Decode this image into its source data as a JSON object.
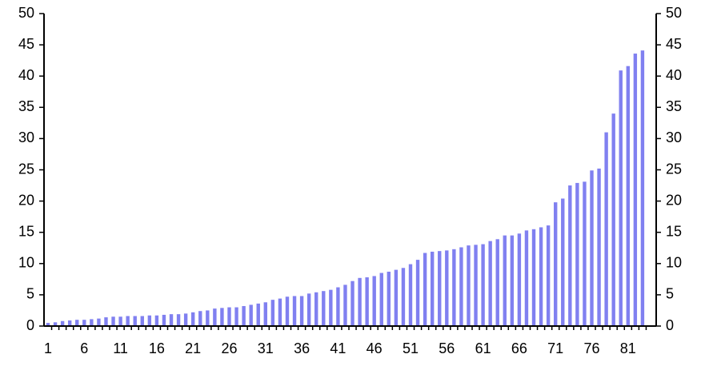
{
  "chart_data": {
    "type": "bar",
    "categories": [
      "1",
      null,
      null,
      null,
      null,
      "6",
      null,
      null,
      null,
      null,
      "11",
      null,
      null,
      null,
      null,
      "16",
      null,
      null,
      null,
      null,
      "21",
      null,
      null,
      null,
      null,
      "26",
      null,
      null,
      null,
      null,
      "31",
      null,
      null,
      null,
      null,
      "36",
      null,
      null,
      null,
      null,
      "41",
      null,
      null,
      null,
      null,
      "46",
      null,
      null,
      null,
      null,
      "51",
      null,
      null,
      null,
      null,
      "56",
      null,
      null,
      null,
      null,
      "61",
      null,
      null,
      null,
      null,
      "66",
      null,
      null,
      null,
      null,
      "71",
      null,
      null,
      null,
      null,
      "76",
      null,
      null,
      null,
      null,
      "81",
      null,
      null
    ],
    "values": [
      0.5,
      0.6,
      0.8,
      0.9,
      1.0,
      1.0,
      1.1,
      1.2,
      1.4,
      1.5,
      1.5,
      1.6,
      1.6,
      1.6,
      1.7,
      1.7,
      1.8,
      1.9,
      1.9,
      2.0,
      2.2,
      2.4,
      2.5,
      2.8,
      2.9,
      3.0,
      3.0,
      3.2,
      3.4,
      3.6,
      3.8,
      4.2,
      4.4,
      4.7,
      4.8,
      4.8,
      5.2,
      5.4,
      5.6,
      5.8,
      6.2,
      6.6,
      7.2,
      7.7,
      7.8,
      8.0,
      8.5,
      8.7,
      9.0,
      9.3,
      9.9,
      10.6,
      11.7,
      11.9,
      12.0,
      12.1,
      12.3,
      12.6,
      12.9,
      13.0,
      13.1,
      13.6,
      13.9,
      14.5,
      14.5,
      14.8,
      15.3,
      15.5,
      15.8,
      16.1,
      19.8,
      20.4,
      22.5,
      22.9,
      23.1,
      24.9,
      25.2,
      31.0,
      34.0,
      40.9,
      41.6,
      43.6,
      44.1
    ],
    "color": "#8080f0",
    "ylim": [
      0,
      50
    ],
    "yticks": [
      0,
      5,
      10,
      15,
      20,
      25,
      30,
      35,
      40,
      45,
      50
    ]
  }
}
